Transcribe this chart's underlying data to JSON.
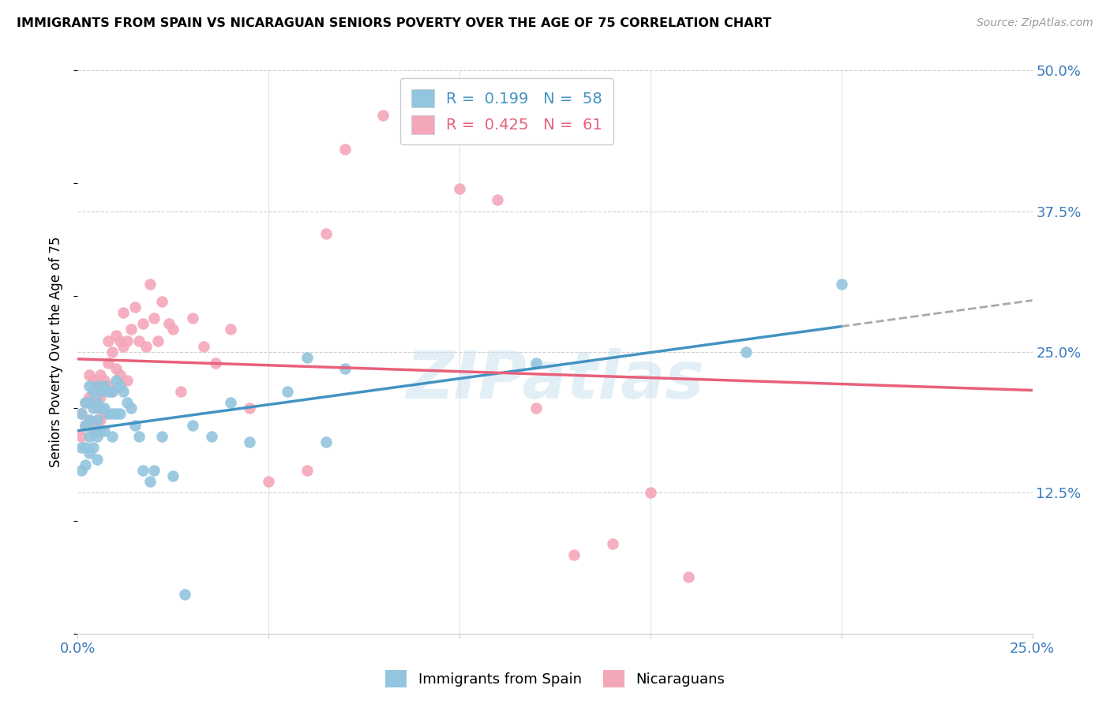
{
  "title": "IMMIGRANTS FROM SPAIN VS NICARAGUAN SENIORS POVERTY OVER THE AGE OF 75 CORRELATION CHART",
  "source": "Source: ZipAtlas.com",
  "ylabel": "Seniors Poverty Over the Age of 75",
  "xlim": [
    0.0,
    0.25
  ],
  "ylim": [
    0.0,
    0.5
  ],
  "xticks": [
    0.0,
    0.05,
    0.1,
    0.15,
    0.2,
    0.25
  ],
  "yticks": [
    0.0,
    0.125,
    0.25,
    0.375,
    0.5
  ],
  "xtick_labels": [
    "0.0%",
    "",
    "",
    "",
    "",
    "25.0%"
  ],
  "ytick_labels": [
    "",
    "12.5%",
    "25.0%",
    "37.5%",
    "50.0%"
  ],
  "blue_R": 0.199,
  "blue_N": 58,
  "pink_R": 0.425,
  "pink_N": 61,
  "blue_color": "#92c5de",
  "pink_color": "#f4a7b9",
  "blue_line_color": "#4393c3",
  "pink_line_color": "#e8607a",
  "dashed_line_color": "#aaaaaa",
  "legend_label_blue": "Immigrants from Spain",
  "legend_label_pink": "Nicaraguans",
  "blue_scatter_x": [
    0.001,
    0.001,
    0.001,
    0.002,
    0.002,
    0.002,
    0.002,
    0.003,
    0.003,
    0.003,
    0.003,
    0.003,
    0.004,
    0.004,
    0.004,
    0.004,
    0.005,
    0.005,
    0.005,
    0.005,
    0.005,
    0.006,
    0.006,
    0.006,
    0.007,
    0.007,
    0.007,
    0.008,
    0.008,
    0.009,
    0.009,
    0.009,
    0.01,
    0.01,
    0.011,
    0.011,
    0.012,
    0.013,
    0.014,
    0.015,
    0.016,
    0.017,
    0.019,
    0.02,
    0.022,
    0.025,
    0.028,
    0.03,
    0.035,
    0.04,
    0.045,
    0.055,
    0.06,
    0.065,
    0.07,
    0.12,
    0.175,
    0.2
  ],
  "blue_scatter_y": [
    0.195,
    0.165,
    0.145,
    0.205,
    0.185,
    0.165,
    0.15,
    0.22,
    0.205,
    0.19,
    0.175,
    0.16,
    0.215,
    0.2,
    0.18,
    0.165,
    0.22,
    0.205,
    0.19,
    0.175,
    0.155,
    0.215,
    0.2,
    0.18,
    0.22,
    0.2,
    0.18,
    0.215,
    0.195,
    0.215,
    0.195,
    0.175,
    0.225,
    0.195,
    0.22,
    0.195,
    0.215,
    0.205,
    0.2,
    0.185,
    0.175,
    0.145,
    0.135,
    0.145,
    0.175,
    0.14,
    0.035,
    0.185,
    0.175,
    0.205,
    0.17,
    0.215,
    0.245,
    0.17,
    0.235,
    0.24,
    0.25,
    0.31
  ],
  "pink_scatter_x": [
    0.001,
    0.001,
    0.002,
    0.002,
    0.003,
    0.003,
    0.003,
    0.004,
    0.004,
    0.004,
    0.005,
    0.005,
    0.005,
    0.006,
    0.006,
    0.006,
    0.007,
    0.007,
    0.008,
    0.008,
    0.008,
    0.009,
    0.009,
    0.01,
    0.01,
    0.011,
    0.011,
    0.012,
    0.012,
    0.013,
    0.013,
    0.014,
    0.015,
    0.016,
    0.017,
    0.018,
    0.019,
    0.02,
    0.021,
    0.022,
    0.024,
    0.025,
    0.027,
    0.03,
    0.033,
    0.036,
    0.04,
    0.045,
    0.05,
    0.06,
    0.065,
    0.07,
    0.08,
    0.09,
    0.1,
    0.11,
    0.12,
    0.13,
    0.14,
    0.15,
    0.16
  ],
  "pink_scatter_y": [
    0.195,
    0.175,
    0.205,
    0.185,
    0.23,
    0.21,
    0.19,
    0.225,
    0.205,
    0.185,
    0.22,
    0.2,
    0.18,
    0.23,
    0.21,
    0.19,
    0.225,
    0.195,
    0.26,
    0.24,
    0.22,
    0.25,
    0.215,
    0.265,
    0.235,
    0.26,
    0.23,
    0.285,
    0.255,
    0.26,
    0.225,
    0.27,
    0.29,
    0.26,
    0.275,
    0.255,
    0.31,
    0.28,
    0.26,
    0.295,
    0.275,
    0.27,
    0.215,
    0.28,
    0.255,
    0.24,
    0.27,
    0.2,
    0.135,
    0.145,
    0.355,
    0.43,
    0.46,
    0.47,
    0.395,
    0.385,
    0.2,
    0.07,
    0.08,
    0.125,
    0.05
  ]
}
